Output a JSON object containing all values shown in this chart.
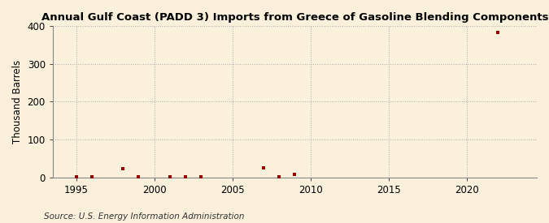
{
  "title": "Annual Gulf Coast (PADD 3) Imports from Greece of Gasoline Blending Components",
  "ylabel": "Thousand Barrels",
  "source": "Source: U.S. Energy Information Administration",
  "background_color": "#faf0dc",
  "plot_background_color": "#faf0dc",
  "marker_color": "#990000",
  "xlim": [
    1993.5,
    2024.5
  ],
  "ylim": [
    0,
    400
  ],
  "yticks": [
    0,
    100,
    200,
    300,
    400
  ],
  "xticks": [
    1995,
    2000,
    2005,
    2010,
    2015,
    2020
  ],
  "data": [
    {
      "year": 1995,
      "value": 2
    },
    {
      "year": 1996,
      "value": 2
    },
    {
      "year": 1998,
      "value": 22
    },
    {
      "year": 1999,
      "value": 2
    },
    {
      "year": 2001,
      "value": 2
    },
    {
      "year": 2002,
      "value": 2
    },
    {
      "year": 2003,
      "value": 2
    },
    {
      "year": 2007,
      "value": 25
    },
    {
      "year": 2008,
      "value": 2
    },
    {
      "year": 2009,
      "value": 7
    },
    {
      "year": 2022,
      "value": 383
    }
  ],
  "grid_color": "#aaaaaa",
  "grid_linestyle": ":",
  "title_fontsize": 9.5,
  "axis_fontsize": 8.5,
  "tick_fontsize": 8.5,
  "source_fontsize": 7.5
}
